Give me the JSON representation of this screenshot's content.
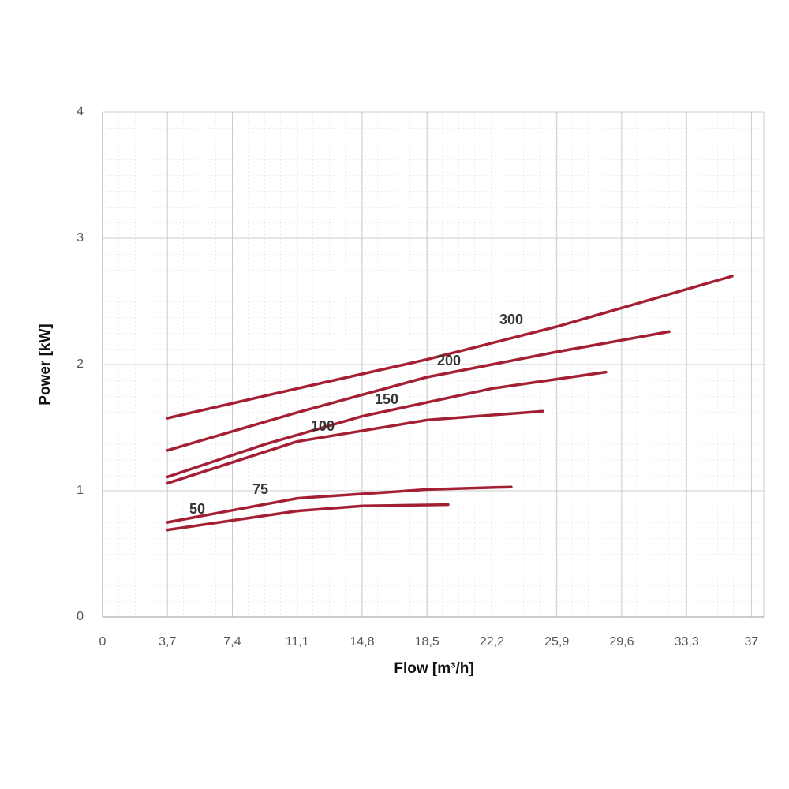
{
  "chart_data": {
    "type": "line",
    "x_label": "Flow [m³/h]",
    "y_label": "Power [kW]",
    "xlim": [
      0,
      37.7
    ],
    "ylim": [
      0,
      4
    ],
    "xticks": [
      0,
      {
        "value": 3.7,
        "label": "3,7"
      },
      {
        "value": 7.4,
        "label": "7,4"
      },
      {
        "value": 11.1,
        "label": "11,1"
      },
      {
        "value": 14.8,
        "label": "14,8"
      },
      {
        "value": 18.5,
        "label": "18,5"
      },
      {
        "value": 22.2,
        "label": "22,2"
      },
      {
        "value": 25.9,
        "label": "25,9"
      },
      {
        "value": 29.6,
        "label": "29,6"
      },
      {
        "value": 33.3,
        "label": "33,3"
      },
      37
    ],
    "yticks": [
      0,
      1,
      2,
      3,
      4
    ],
    "grid": true,
    "series": [
      {
        "name": "300",
        "color": "#a51f34",
        "x": [
          3.7,
          11.1,
          18.5,
          25.9,
          35.9
        ],
        "values": [
          1.575,
          1.81,
          2.04,
          2.3,
          2.7
        ]
      },
      {
        "name": "200",
        "color": "#a51f34",
        "x": [
          3.7,
          11.1,
          18.5,
          25.9,
          32.3
        ],
        "values": [
          1.32,
          1.62,
          1.9,
          2.1,
          2.26
        ]
      },
      {
        "name": "150",
        "color": "#a51f34",
        "x": [
          3.7,
          9.3,
          14.8,
          22.2,
          28.7
        ],
        "values": [
          1.11,
          1.37,
          1.59,
          1.81,
          1.94
        ]
      },
      {
        "name": "100",
        "color": "#a51f34",
        "x": [
          3.7,
          11.1,
          18.5,
          25.1
        ],
        "values": [
          1.06,
          1.39,
          1.56,
          1.63
        ]
      },
      {
        "name": "75",
        "color": "#a51f34",
        "x": [
          3.7,
          11.1,
          18.5,
          23.3
        ],
        "values": [
          0.75,
          0.94,
          1.01,
          1.03
        ]
      },
      {
        "name": "50",
        "color": "#a51f34",
        "x": [
          3.7,
          11.1,
          14.8,
          19.7
        ],
        "values": [
          0.69,
          0.84,
          0.88,
          0.89
        ]
      }
    ]
  }
}
